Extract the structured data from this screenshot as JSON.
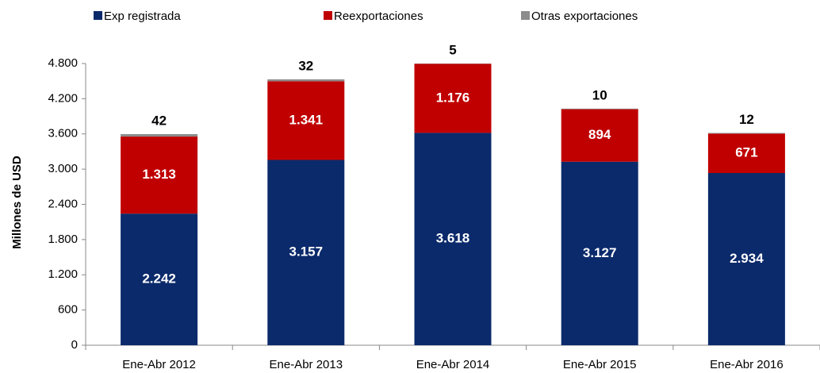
{
  "chart_data": {
    "type": "stacked-bar",
    "y_label": "Millones de  USD",
    "categories": [
      "Ene-Abr 2012",
      "Ene-Abr 2013",
      "Ene-Abr 2014",
      "Ene-Abr 2015",
      "Ene-Abr 2016"
    ],
    "series": [
      {
        "name": "Exp registrada",
        "color": "#0b2a6b",
        "values": [
          2242,
          3157,
          3618,
          3127,
          2934
        ],
        "value_labels": [
          "2.242",
          "3.157",
          "3.618",
          "3.127",
          "2.934"
        ]
      },
      {
        "name": "Reexportaciones",
        "color": "#c00000",
        "values": [
          1313,
          1341,
          1176,
          894,
          671
        ],
        "value_labels": [
          "1.313",
          "1.341",
          "1.176",
          "894",
          "671"
        ]
      },
      {
        "name": "Otras exportaciones",
        "color": "#8c8c8c",
        "values": [
          42,
          32,
          5,
          10,
          12
        ]
      }
    ],
    "ylim": [
      0,
      4800
    ],
    "yticks": [
      0,
      600,
      {
        "value": 1200,
        "label": "1.200"
      },
      {
        "value": 1800,
        "label": "1.800"
      },
      {
        "value": 2400,
        "label": "2.400"
      },
      {
        "value": 3000,
        "label": "3.000"
      },
      {
        "value": 3600,
        "label": "3.600"
      },
      {
        "value": 4200,
        "label": "4.200"
      },
      {
        "value": 4800,
        "label": "4.800"
      }
    ],
    "grid": false,
    "legend": "top"
  }
}
